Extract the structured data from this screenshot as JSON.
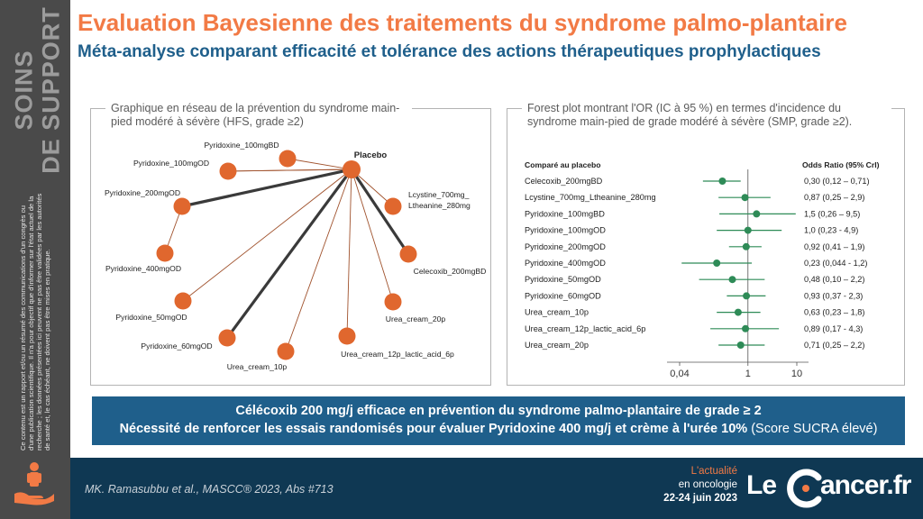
{
  "sidebar": {
    "title_line1": "SOINS",
    "title_line2": "DE SUPPORT",
    "disclaimer": "Ce contenu est un rapport et/ou un résumé des communications d'un congrès ou d'une publication scientifique. Il n'a pour objectif que d'informer sur l'état actuel de la recherche ; les données présentées ici peuvent ne pas être validées par les autorités de santé et, le cas échéant, ne doivent pas être mises en pratique.",
    "icon": "person-hand-icon"
  },
  "header": {
    "title": "Evaluation Bayesienne des traitements du syndrome palmo-plantaire",
    "subtitle": "Méta-analyse comparant efficacité et tolérance des actions thérapeutiques prophylactiques"
  },
  "network": {
    "title": "Graphique en réseau de la prévention du syndrome main-pied modéré à sévère (HFS, grade ≥2)",
    "hub": "Placebo",
    "nodes": [
      {
        "label": "Pyridoxine_100mgBD",
        "edge_weight": "thin"
      },
      {
        "label": "Pyridoxine_100mgOD",
        "edge_weight": "thin"
      },
      {
        "label": "Pyridoxine_200mgOD",
        "edge_weight": "thick"
      },
      {
        "label": "Pyridoxine_400mgOD",
        "edge_weight": "none"
      },
      {
        "label": "Pyridoxine_50mgOD",
        "edge_weight": "thin"
      },
      {
        "label": "Pyridoxine_60mgOD",
        "edge_weight": "thick"
      },
      {
        "label": "Urea_cream_10p",
        "edge_weight": "thin"
      },
      {
        "label": "Urea_cream_12p_lactic_acid_6p",
        "edge_weight": "thin"
      },
      {
        "label": "Urea_cream_20p",
        "edge_weight": "thin"
      },
      {
        "label": "Celecoxib_200mgBD",
        "edge_weight": "thick"
      },
      {
        "label": "Lcystine_700mg_ Ltheanine_280mg",
        "edge_weight": "thin"
      }
    ],
    "node_color": "#e0672e",
    "edge_color_thin": "#a0522d",
    "edge_color_thick": "#3a3a3a"
  },
  "forest": {
    "title": "Forest plot montrant l'OR (IC à 95 %) en termes d'incidence du syndrome main-pied de grade modéré à sévère (SMP, grade ≥2).",
    "col_left": "Comparé au placebo",
    "col_right": "Odds Ratio (95% CrI)",
    "x_ticks": [
      "0,04",
      "1",
      "10"
    ],
    "color": "#2e8b57"
  },
  "chart_data": {
    "type": "scatter",
    "title": "Forest plot montrant l'OR (IC à 95 %) en termes d'incidence du syndrome main-pied de grade modéré à sévère (SMP, grade ≥2).",
    "xscale": "log",
    "xlim": [
      0.04,
      10
    ],
    "x_ticks": [
      0.04,
      1,
      10
    ],
    "reference_line": 1,
    "rows": [
      {
        "label": "Celecoxib_200mgBD",
        "or": 0.3,
        "lo": 0.12,
        "hi": 0.71,
        "text": "0,30 (0,12 – 0,71)"
      },
      {
        "label": "Lcystine_700mg_Ltheanine_280mg",
        "or": 0.87,
        "lo": 0.25,
        "hi": 2.9,
        "text": "0,87 (0,25 – 2,9)"
      },
      {
        "label": "Pyridoxine_100mgBD",
        "or": 1.5,
        "lo": 0.26,
        "hi": 9.5,
        "text": "1,5 (0,26 – 9,5)"
      },
      {
        "label": "Pyridoxine_100mgOD",
        "or": 1.0,
        "lo": 0.23,
        "hi": 4.9,
        "text": "1,0 (0,23 - 4,9)"
      },
      {
        "label": "Pyridoxine_200mgOD",
        "or": 0.92,
        "lo": 0.41,
        "hi": 1.9,
        "text": "0,92 (0,41 – 1,9)"
      },
      {
        "label": "Pyridoxine_400mgOD",
        "or": 0.23,
        "lo": 0.044,
        "hi": 1.2,
        "text": "0,23 (0,044 - 1,2)"
      },
      {
        "label": "Pyridoxine_50mgOD",
        "or": 0.48,
        "lo": 0.1,
        "hi": 2.2,
        "text": "0,48 (0,10 – 2,2)"
      },
      {
        "label": "Pyridoxine_60mgOD",
        "or": 0.93,
        "lo": 0.37,
        "hi": 2.3,
        "text": "0,93 (0,37 - 2,3)"
      },
      {
        "label": "Urea_cream_10p",
        "or": 0.63,
        "lo": 0.23,
        "hi": 1.8,
        "text": "0,63 (0,23 – 1,8)"
      },
      {
        "label": "Urea_cream_12p_lactic_acid_6p",
        "or": 0.89,
        "lo": 0.17,
        "hi": 4.3,
        "text": "0,89 (0,17 - 4,3)"
      },
      {
        "label": "Urea_cream_20p",
        "or": 0.71,
        "lo": 0.25,
        "hi": 2.2,
        "text": "0,71 (0,25 – 2,2)"
      }
    ]
  },
  "conclusion": {
    "line1": "Célécoxib 200 mg/j efficace en prévention du syndrome palmo-plantaire de grade ≥ 2",
    "line2": "Nécessité de renforcer les essais randomisés pour évaluer Pyridoxine 400 mg/j et crème à l'urée 10%",
    "line2_note": "(Score SUCRA élevé)"
  },
  "footer": {
    "citation": "MK. Ramasubbu et al., MASCC® 2023, Abs #713",
    "actu_line1": "L'actualité",
    "actu_line2": "en oncologie",
    "actu_dates": "22-24 juin 2023",
    "logo_le": "Le",
    "logo_rest": "ancer.fr"
  }
}
